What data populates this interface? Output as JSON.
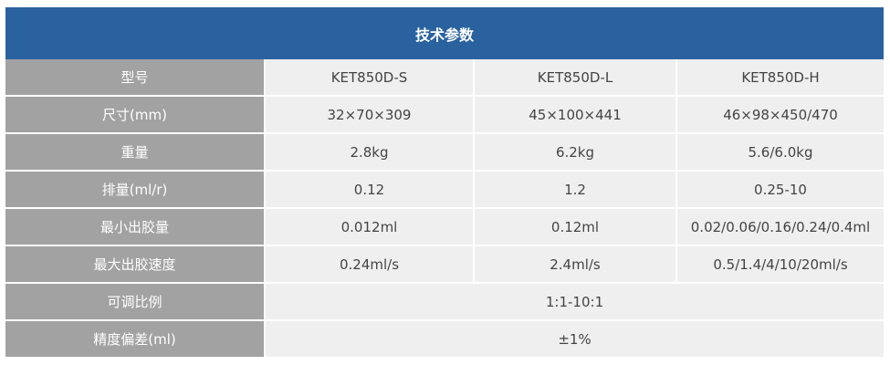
{
  "table": {
    "title": "技术参数",
    "rows": [
      [
        "型号",
        "KET850D-S",
        "KET850D-L",
        "KET850D-H"
      ],
      [
        "尺寸(mm)",
        "32×70×309",
        "45×100×441",
        "46×98×450/470"
      ],
      [
        "重量",
        "2.8kg",
        "6.2kg",
        "5.6/6.0kg"
      ],
      [
        "排量(ml/r)",
        "0.12",
        "1.2",
        "0.25-10"
      ],
      [
        "最小出胶量",
        "0.012ml",
        "0.12ml",
        "0.02/0.06/0.16/0.24/0.4ml"
      ],
      [
        "最大出胶速度",
        "0.24ml/s",
        "2.4ml/s",
        "0.5/1.4/4/10/20ml/s"
      ],
      [
        "可调比例",
        "1:1-10:1"
      ],
      [
        "精度偏差(ml)",
        "±1%"
      ]
    ]
  }
}
